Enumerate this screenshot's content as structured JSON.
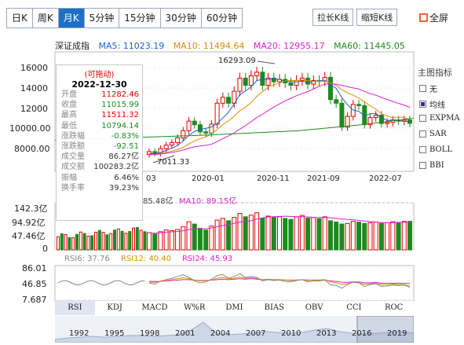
{
  "toolbar": {
    "periods": [
      "日K",
      "周K",
      "月K",
      "5分钟",
      "15分钟",
      "30分钟",
      "60分钟"
    ],
    "active_period": "月K",
    "stretch_label": "拉长K线",
    "shrink_label": "缩短K线",
    "fullscreen_label": "全屏"
  },
  "ma_header": {
    "index_name": "深证成指",
    "ma5": "MA5: 11023.19",
    "ma10": "MA10: 11494.64",
    "ma20": "MA20: 12955.17",
    "ma60": "MA60: 11445.05",
    "colors": {
      "ma5": "#1f5fd0",
      "ma10": "#d89000",
      "ma20": "#e020d0",
      "ma60": "#1e8a1e"
    }
  },
  "info_box": {
    "draggable": "(可拖动)",
    "date": "2022-12-30",
    "rows": [
      {
        "label": "开盘",
        "value": "11282.46",
        "color": "#e60000"
      },
      {
        "label": "收盘",
        "value": "11015.99",
        "color": "#1e8a1e"
      },
      {
        "label": "最高",
        "value": "11511.32",
        "color": "#e60000"
      },
      {
        "label": "最低",
        "value": "10794.14",
        "color": "#1e8a1e"
      },
      {
        "label": "涨跌幅",
        "value": "-0.83%",
        "color": "#1e8a1e"
      },
      {
        "label": "涨跌额",
        "value": "-92.51",
        "color": "#1e8a1e"
      },
      {
        "label": "成交量",
        "value": "86.27亿",
        "color": "#333"
      },
      {
        "label": "成交额",
        "value": "100283.2亿",
        "color": "#333"
      },
      {
        "label": "振幅",
        "value": "6.46%",
        "color": "#333"
      },
      {
        "label": "换手率",
        "value": "39.23%",
        "color": "#333"
      }
    ]
  },
  "side_panel": {
    "title": "主图指标",
    "items": [
      {
        "label": "无",
        "checked": false
      },
      {
        "label": "均线",
        "checked": true
      },
      {
        "label": "EXPMA",
        "checked": false
      },
      {
        "label": "SAR",
        "checked": false
      },
      {
        "label": "BOLL",
        "checked": false
      },
      {
        "label": "BBI",
        "checked": false
      }
    ]
  },
  "chart_data": [
    {
      "type": "candlestick",
      "y_ticks": [
        "16000",
        "14000",
        "12000",
        "10000.00",
        "8000.00"
      ],
      "ylim": [
        7000,
        17000
      ],
      "x_ticks": [
        "2020-01",
        "2020-11",
        "2021-09",
        "2022-07"
      ],
      "partial_x_tick": "03",
      "annotations": {
        "high": "16293.09",
        "low": "7011.33"
      },
      "candles_note": "monthly candles, approximate",
      "closes": [
        8650,
        8500,
        8900,
        9200,
        9400,
        9800,
        10400,
        11200,
        10900,
        10300,
        10200,
        10950,
        12700,
        13200,
        12700,
        13700,
        14800,
        14200,
        15000,
        15300,
        14200,
        14800,
        14500,
        14700,
        14400,
        14200,
        14600,
        14800,
        14300,
        14600,
        14550,
        14870,
        13000,
        12700,
        10700,
        11600,
        12600,
        12500,
        10900,
        11500,
        11700,
        11000,
        11100,
        11300,
        11200,
        11300,
        11020
      ],
      "ma5_label": "MA5",
      "ma10_label": "MA10",
      "ma20_label": "MA20",
      "ma60_label": "MA60"
    },
    {
      "type": "bar",
      "label_partial": "85.48亿",
      "ma10_label": "MA10: 89.15亿",
      "y_ticks": [
        "142.3亿",
        "94.92亿",
        "47.46亿",
        "0"
      ],
      "ylim": [
        0,
        142.3
      ],
      "volumes": [
        52,
        48,
        55,
        60,
        58,
        62,
        70,
        85,
        78,
        65,
        60,
        72,
        90,
        95,
        88,
        98,
        110,
        100,
        105,
        112,
        96,
        102,
        98,
        100,
        95,
        92,
        100,
        104,
        96,
        98,
        94,
        100,
        88,
        84,
        78,
        80,
        86,
        84,
        80,
        82,
        84,
        80,
        82,
        85,
        83,
        86,
        86.27
      ]
    },
    {
      "type": "line",
      "rsi6_label": "RSI6: 37.76",
      "rsi12_label": "RSI12: 40.40",
      "rsi24_label": "RSI24: 45.93",
      "y_ticks": [
        "86.01",
        "46.85",
        "7.687"
      ],
      "ylim": [
        7.687,
        86.01
      ],
      "rsi6": [
        48,
        45,
        52,
        55,
        58,
        62,
        66,
        60,
        52,
        48,
        50,
        56,
        64,
        66,
        58,
        62,
        68,
        60,
        62,
        60,
        52,
        55,
        53,
        54,
        51,
        50,
        53,
        55,
        50,
        52,
        52,
        54,
        44,
        42,
        36,
        44,
        50,
        48,
        40,
        44,
        46,
        40,
        41,
        43,
        42,
        43,
        37.76
      ],
      "rsi12": [
        50,
        49,
        51,
        53,
        55,
        57,
        59,
        57,
        54,
        52,
        52,
        54,
        58,
        60,
        57,
        58,
        61,
        58,
        59,
        58,
        55,
        56,
        55,
        55,
        54,
        53,
        54,
        55,
        53,
        54,
        54,
        55,
        50,
        48,
        44,
        46,
        49,
        48,
        45,
        46,
        47,
        44,
        44,
        45,
        44,
        44,
        40.4
      ],
      "rsi24": [
        51,
        51,
        51,
        52,
        53,
        54,
        55,
        55,
        54,
        53,
        53,
        54,
        55,
        56,
        55,
        56,
        57,
        56,
        57,
        56,
        55,
        55,
        55,
        55,
        54,
        54,
        54,
        55,
        54,
        54,
        54,
        54,
        52,
        51,
        49,
        49,
        50,
        50,
        48,
        48,
        49,
        47,
        47,
        47,
        47,
        47,
        45.93
      ]
    }
  ],
  "indicator_tabs": [
    "RSI",
    "KDJ",
    "MACD",
    "W%R",
    "DMI",
    "BIAS",
    "OBV",
    "CCI",
    "ROC"
  ],
  "active_indicator": "RSI",
  "navigator": {
    "years": [
      "1992",
      "1995",
      "1998",
      "2001",
      "2004",
      "2007",
      "2010",
      "2013",
      "2016",
      "2019"
    ]
  }
}
